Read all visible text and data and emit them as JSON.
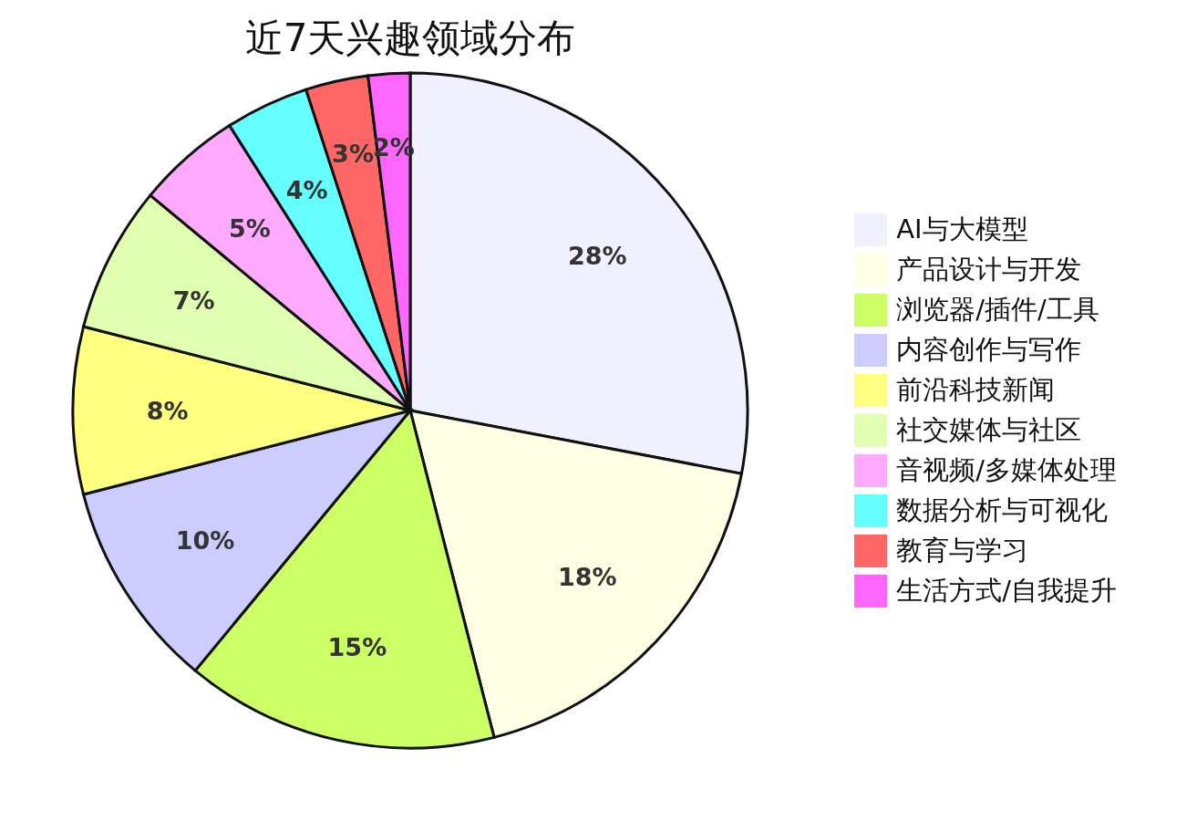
{
  "chart_data": {
    "type": "pie",
    "title": "近7天兴趣领域分布",
    "categories": [
      "AI与大模型",
      "产品设计与开发",
      "浏览器/插件/工具",
      "内容创作与写作",
      "前沿科技新闻",
      "社交媒体与社区",
      "音视频/多媒体处理",
      "数据分析与可视化",
      "教育与学习",
      "生活方式/自我提升"
    ],
    "values": [
      28,
      18,
      15,
      10,
      8,
      7,
      5,
      4,
      3,
      2
    ],
    "colors": [
      "#f0f0ff",
      "#ffffe6",
      "#ccff66",
      "#ccccff",
      "#ffff80",
      "#e0ffb0",
      "#ffaaff",
      "#66ffff",
      "#ff6666",
      "#ff66ff"
    ],
    "value_labels": [
      "28%",
      "18%",
      "15%",
      "10%",
      "8%",
      "7%",
      "5%",
      "4%",
      "3%",
      "2%"
    ],
    "legend": "right"
  }
}
